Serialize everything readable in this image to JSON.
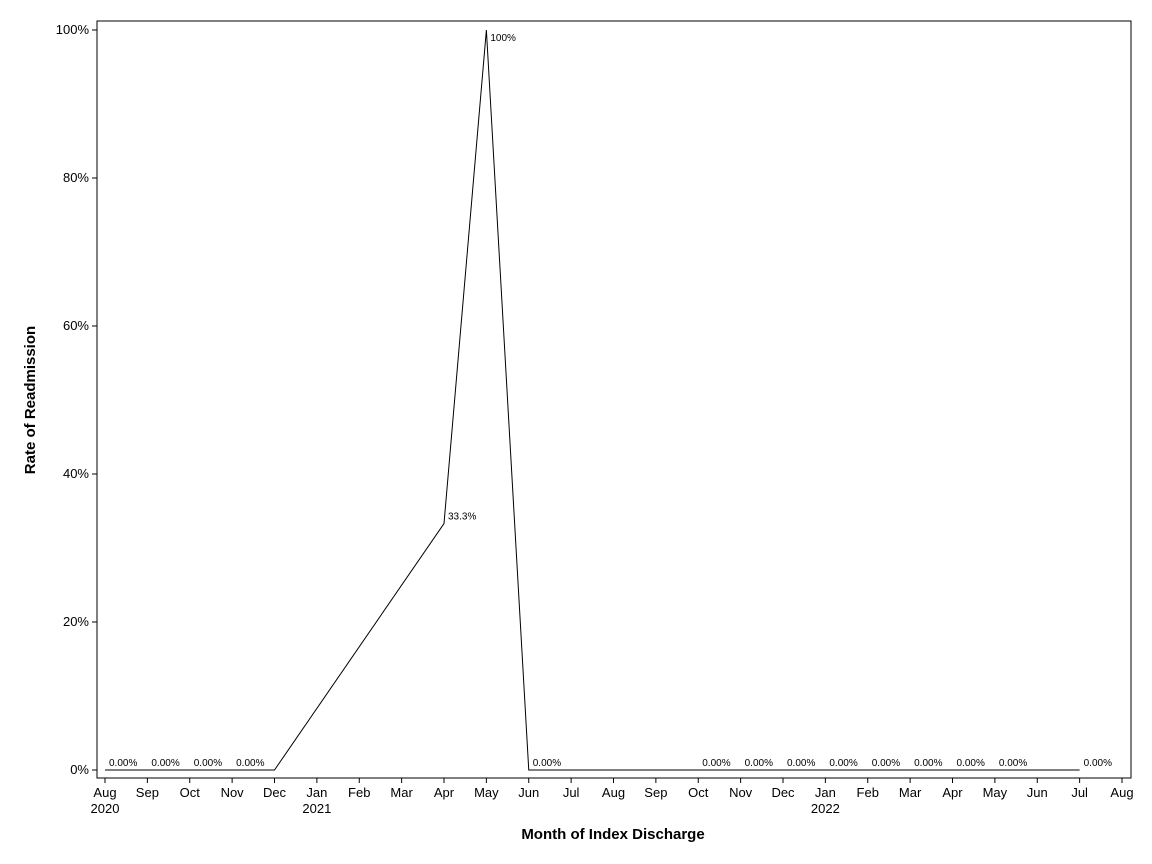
{
  "chart_data": {
    "type": "line",
    "x_label": "Month of Index Discharge",
    "y_label": "Rate of Readmission",
    "x": [
      "2020-08",
      "2020-09",
      "2020-10",
      "2020-11",
      "2020-12",
      "2021-04",
      "2021-05",
      "2021-06",
      "2021-10",
      "2021-11",
      "2021-12",
      "2022-01",
      "2022-02",
      "2022-03",
      "2022-04",
      "2022-05",
      "2022-07"
    ],
    "series": [
      {
        "color": "#000000",
        "values": [
          0,
          0,
          0,
          0,
          0,
          33.3,
          100,
          0,
          0,
          0,
          0,
          0,
          0,
          0,
          0,
          0,
          0
        ],
        "value_labels": [
          "0.00%",
          "0.00%",
          "0.00%",
          "0.00%",
          null,
          "33.3%",
          "100%",
          "0.00%",
          "0.00%",
          "0.00%",
          "0.00%",
          "0.00%",
          "0.00%",
          "0.00%",
          "0.00%",
          "0.00%",
          "0.00%"
        ]
      }
    ],
    "xlim": [
      "2020-08",
      "2022-08"
    ],
    "xticks": [
      {
        "value": "2020-08",
        "label": "Aug"
      },
      {
        "value": "2020-09",
        "label": "Sep"
      },
      {
        "value": "2020-10",
        "label": "Oct"
      },
      {
        "value": "2020-11",
        "label": "Nov"
      },
      {
        "value": "2020-12",
        "label": "Dec"
      },
      {
        "value": "2021-01",
        "label": "Jan"
      },
      {
        "value": "2021-02",
        "label": "Feb"
      },
      {
        "value": "2021-03",
        "label": "Mar"
      },
      {
        "value": "2021-04",
        "label": "Apr"
      },
      {
        "value": "2021-05",
        "label": "May"
      },
      {
        "value": "2021-06",
        "label": "Jun"
      },
      {
        "value": "2021-07",
        "label": "Jul"
      },
      {
        "value": "2021-08",
        "label": "Aug"
      },
      {
        "value": "2021-09",
        "label": "Sep"
      },
      {
        "value": "2021-10",
        "label": "Oct"
      },
      {
        "value": "2021-11",
        "label": "Nov"
      },
      {
        "value": "2021-12",
        "label": "Dec"
      },
      {
        "value": "2022-01",
        "label": "Jan"
      },
      {
        "value": "2022-02",
        "label": "Feb"
      },
      {
        "value": "2022-03",
        "label": "Mar"
      },
      {
        "value": "2022-04",
        "label": "Apr"
      },
      {
        "value": "2022-05",
        "label": "May"
      },
      {
        "value": "2022-06",
        "label": "Jun"
      },
      {
        "value": "2022-07",
        "label": "Jul"
      },
      {
        "value": "2022-08",
        "label": "Aug"
      }
    ],
    "xtick_years": [
      {
        "value": "2020-08",
        "label": "2020"
      },
      {
        "value": "2021-01",
        "label": "2021"
      },
      {
        "value": "2022-01",
        "label": "2022"
      }
    ],
    "ylim": [
      0,
      100
    ],
    "yticks": [
      {
        "value": 0,
        "label": "0%"
      },
      {
        "value": 20,
        "label": "20%"
      },
      {
        "value": 40,
        "label": "40%"
      },
      {
        "value": 60,
        "label": "60%"
      },
      {
        "value": 80,
        "label": "80%"
      },
      {
        "value": 100,
        "label": "100%"
      }
    ],
    "grid": false
  }
}
